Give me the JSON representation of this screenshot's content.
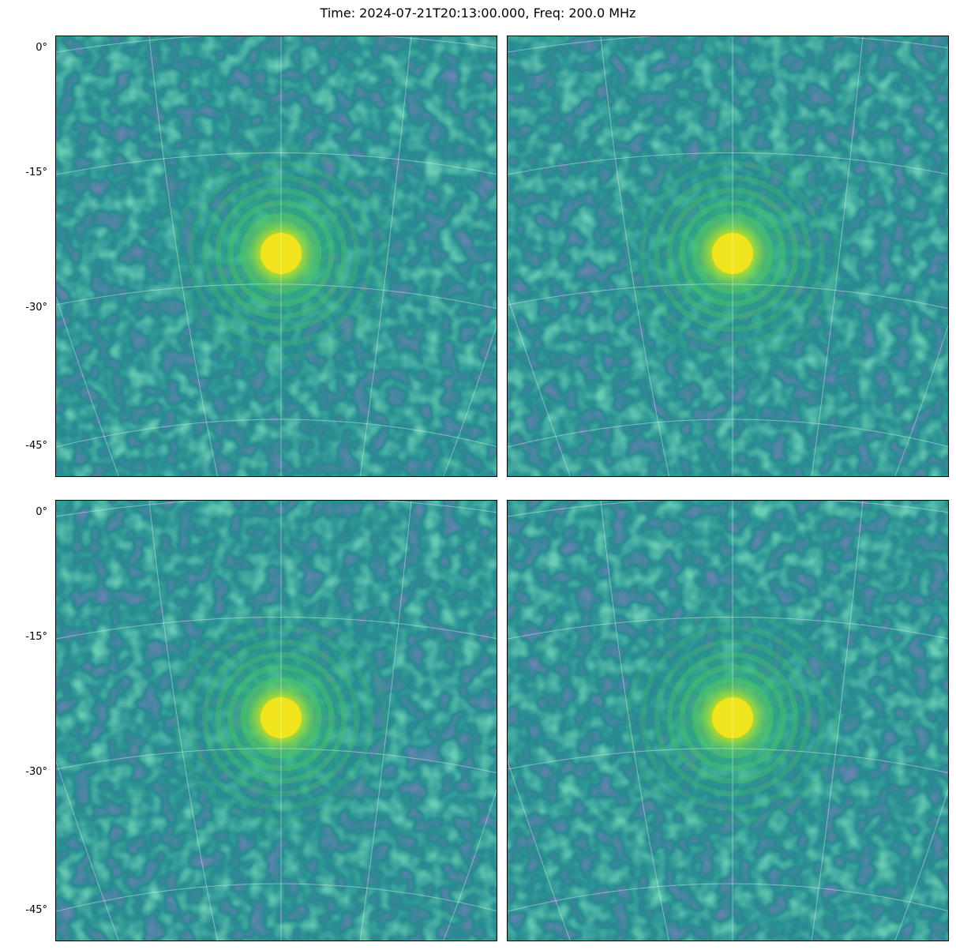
{
  "title": "Time: 2024-07-21T20:13:00.000, Freq: 200.0 MHz",
  "rows": [
    {
      "ytick_labels": [
        "0°",
        "-15°",
        "-30°",
        "-45°"
      ]
    },
    {
      "ytick_labels": [
        "0°",
        "-15°",
        "-30°",
        "-45°"
      ]
    }
  ]
}
